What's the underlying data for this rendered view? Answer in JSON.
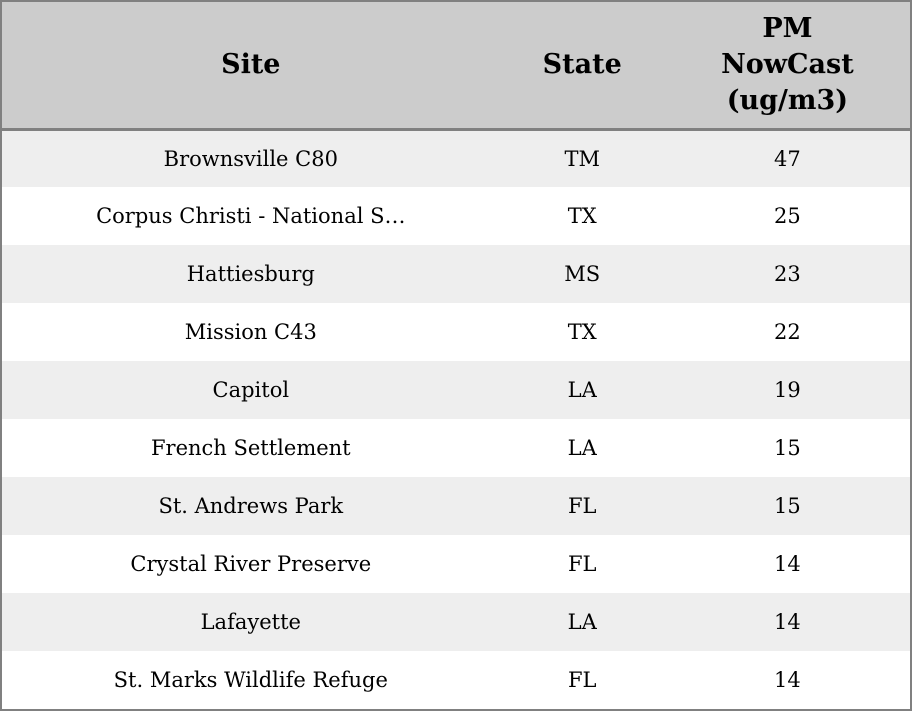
{
  "colors": {
    "header_bg": "#cccccc",
    "row_bg": "#ffffff",
    "row_alt_bg": "#eeeeee",
    "border": "#808080",
    "text": "#000000"
  },
  "table": {
    "columns": [
      {
        "id": "site",
        "label": "Site"
      },
      {
        "id": "state",
        "label": "State"
      },
      {
        "id": "pm",
        "label": "PM\nNowCast\n(ug/m3)"
      }
    ],
    "rows": [
      {
        "site": "Brownsville C80",
        "state": "TM",
        "pm": 47
      },
      {
        "site": "Corpus Christi - National S…",
        "state": "TX",
        "pm": 25
      },
      {
        "site": "Hattiesburg",
        "state": "MS",
        "pm": 23
      },
      {
        "site": "Mission C43",
        "state": "TX",
        "pm": 22
      },
      {
        "site": "Capitol",
        "state": "LA",
        "pm": 19
      },
      {
        "site": "French Settlement",
        "state": "LA",
        "pm": 15
      },
      {
        "site": "St. Andrews Park",
        "state": "FL",
        "pm": 15
      },
      {
        "site": "Crystal River Preserve",
        "state": "FL",
        "pm": 14
      },
      {
        "site": "Lafayette",
        "state": "LA",
        "pm": 14
      },
      {
        "site": "St. Marks Wildlife Refuge",
        "state": "FL",
        "pm": 14
      }
    ]
  },
  "chart_data": {
    "type": "table",
    "title": "",
    "columns": [
      "Site",
      "State",
      "PM NowCast (ug/m3)"
    ],
    "rows": [
      [
        "Brownsville C80",
        "TM",
        47
      ],
      [
        "Corpus Christi - National S…",
        "TX",
        25
      ],
      [
        "Hattiesburg",
        "MS",
        23
      ],
      [
        "Mission C43",
        "TX",
        22
      ],
      [
        "Capitol",
        "LA",
        19
      ],
      [
        "French Settlement",
        "LA",
        15
      ],
      [
        "St. Andrews Park",
        "FL",
        15
      ],
      [
        "Crystal River Preserve",
        "FL",
        14
      ],
      [
        "Lafayette",
        "LA",
        14
      ],
      [
        "St. Marks Wildlife Refuge",
        "FL",
        14
      ]
    ]
  }
}
